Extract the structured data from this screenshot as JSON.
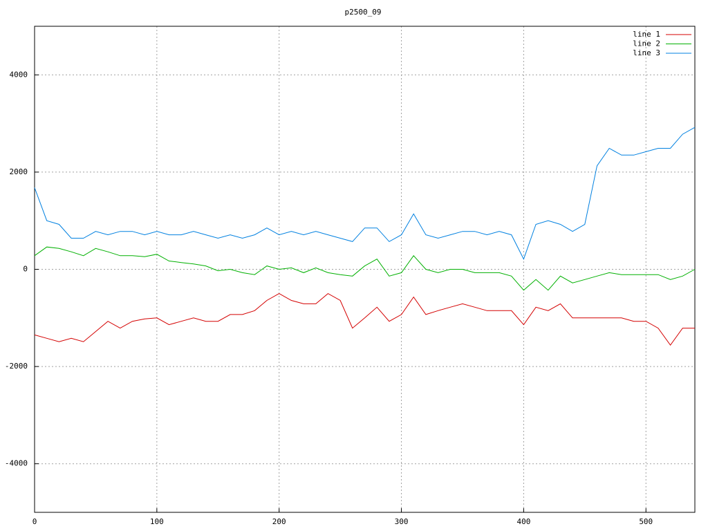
{
  "chart_data": {
    "type": "line",
    "title": "p2500_09",
    "x": [
      0,
      10,
      20,
      30,
      40,
      50,
      60,
      70,
      80,
      90,
      100,
      110,
      120,
      130,
      140,
      150,
      160,
      170,
      180,
      190,
      200,
      210,
      220,
      230,
      240,
      250,
      260,
      270,
      280,
      290,
      300,
      310,
      320,
      330,
      340,
      350,
      360,
      370,
      380,
      390,
      400,
      410,
      420,
      430,
      440,
      450,
      460,
      470,
      480,
      490,
      500,
      510,
      520,
      530,
      540
    ],
    "series": [
      {
        "name": "line 1",
        "color": "#d40000",
        "values": [
          -1350,
          -1420,
          -1490,
          -1420,
          -1490,
          -1280,
          -1070,
          -1210,
          -1070,
          -1020,
          -1000,
          -1140,
          -1070,
          -1000,
          -1070,
          -1070,
          -930,
          -930,
          -850,
          -640,
          -500,
          -640,
          -710,
          -710,
          -500,
          -640,
          -1210,
          -1000,
          -780,
          -1070,
          -930,
          -570,
          -930,
          -850,
          -780,
          -710,
          -780,
          -850,
          -850,
          -850,
          -1140,
          -780,
          -850,
          -710,
          -1000,
          -1000,
          -1000,
          -1000,
          -1000,
          -1070,
          -1070,
          -1210,
          -1560,
          -1210,
          -1210
        ]
      },
      {
        "name": "line 2",
        "color": "#00b000",
        "values": [
          280,
          460,
          430,
          360,
          280,
          430,
          360,
          280,
          280,
          260,
          310,
          170,
          140,
          110,
          70,
          -30,
          0,
          -70,
          -110,
          70,
          0,
          30,
          -70,
          30,
          -70,
          -110,
          -140,
          70,
          210,
          -140,
          -70,
          280,
          0,
          -70,
          0,
          0,
          -70,
          -70,
          -70,
          -140,
          -430,
          -210,
          -430,
          -140,
          -280,
          -210,
          -140,
          -70,
          -110,
          -110,
          -110,
          -110,
          -210,
          -140,
          0
        ]
      },
      {
        "name": "line 3",
        "color": "#0080e0",
        "values": [
          1680,
          1000,
          925,
          640,
          640,
          780,
          710,
          780,
          780,
          710,
          780,
          710,
          710,
          780,
          710,
          640,
          710,
          640,
          710,
          850,
          710,
          780,
          710,
          780,
          710,
          640,
          570,
          850,
          850,
          570,
          710,
          1140,
          710,
          640,
          710,
          780,
          780,
          710,
          780,
          710,
          210,
          925,
          1000,
          925,
          780,
          925,
          2130,
          2490,
          2350,
          2350,
          2420,
          2490,
          2490,
          2780,
          2920
        ]
      }
    ],
    "xlim": [
      0,
      540
    ],
    "xticks": [
      0,
      100,
      200,
      300,
      400,
      500
    ],
    "ylim": [
      -5000,
      5000
    ],
    "yticks": [
      -4000,
      -2000,
      0,
      2000,
      4000
    ],
    "grid": true,
    "legend": "top-right"
  }
}
